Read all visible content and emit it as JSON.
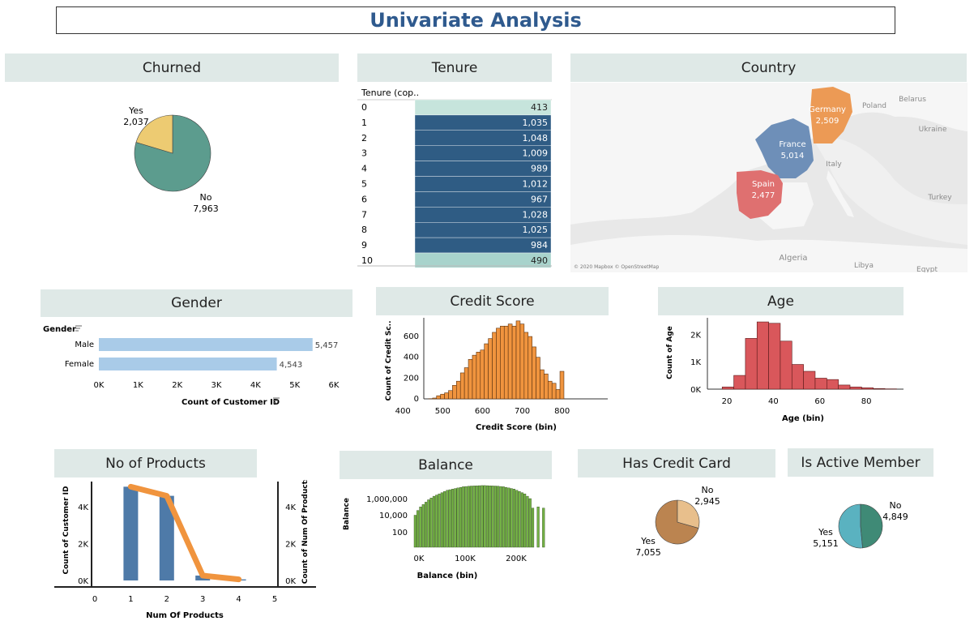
{
  "page": {
    "title": "Univariate Analysis"
  },
  "sections": {
    "churned": "Churned",
    "tenure": "Tenure",
    "country": "Country",
    "gender": "Gender",
    "credit_score": "Credit Score",
    "age": "Age",
    "products": "No of Products",
    "balance": "Balance",
    "credit_card": "Has Credit Card",
    "active_member": "Is Active Member"
  },
  "colors": {
    "churn_no": "#5c9c8e",
    "churn_yes": "#edcb72",
    "tenure_dark": "#2f5c84",
    "tenure_light": "#c6e4dc",
    "germany": "#ec9a55",
    "france": "#6e8fb8",
    "spain": "#df7070",
    "gender_bar": "#a9cbe8",
    "credit_bar": "#f0943e",
    "age_bar": "#d9575b",
    "products_bar": "#4e7aa8",
    "products_line": "#f0943e",
    "balance_bar": "#74b245",
    "cc_yes": "#bb8450",
    "cc_no": "#e8bf8c",
    "active_yes": "#5ab2c0",
    "active_no": "#3f8a76"
  },
  "map": {
    "copyright": "© 2020 Mapbox © OpenStreetMap"
  },
  "chart_data": [
    {
      "id": "churned",
      "type": "pie",
      "slices": [
        {
          "label": "No",
          "value": 7963,
          "value_label": "7,963"
        },
        {
          "label": "Yes",
          "value": 2037,
          "value_label": "2,037"
        }
      ]
    },
    {
      "id": "tenure",
      "type": "table",
      "column_header": "Tenure (cop..",
      "rows": [
        {
          "tenure": "0",
          "count": 413,
          "count_label": "413"
        },
        {
          "tenure": "1",
          "count": 1035,
          "count_label": "1,035"
        },
        {
          "tenure": "2",
          "count": 1048,
          "count_label": "1,048"
        },
        {
          "tenure": "3",
          "count": 1009,
          "count_label": "1,009"
        },
        {
          "tenure": "4",
          "count": 989,
          "count_label": "989"
        },
        {
          "tenure": "5",
          "count": 1012,
          "count_label": "1,012"
        },
        {
          "tenure": "6",
          "count": 967,
          "count_label": "967"
        },
        {
          "tenure": "7",
          "count": 1028,
          "count_label": "1,028"
        },
        {
          "tenure": "8",
          "count": 1025,
          "count_label": "1,025"
        },
        {
          "tenure": "9",
          "count": 984,
          "count_label": "984"
        },
        {
          "tenure": "10",
          "count": 490,
          "count_label": "490"
        }
      ]
    },
    {
      "id": "country",
      "type": "map",
      "regions": [
        {
          "name": "Germany",
          "value": 2509,
          "value_label": "2,509"
        },
        {
          "name": "France",
          "value": 5014,
          "value_label": "5,014"
        },
        {
          "name": "Spain",
          "value": 2477,
          "value_label": "2,477"
        }
      ],
      "place_labels": [
        "Poland",
        "Belarus",
        "Ukraine",
        "Italy",
        "Turkey",
        "Algeria",
        "Libya",
        "Egypt"
      ]
    },
    {
      "id": "gender",
      "type": "bar",
      "orientation": "horizontal",
      "row_header": "Gender",
      "xlabel": "Count of Customer ID",
      "categories": [
        "Male",
        "Female"
      ],
      "values": [
        5457,
        4543
      ],
      "value_labels": [
        "5,457",
        "4,543"
      ],
      "xlim": [
        0,
        6000
      ],
      "xticks": [
        0,
        1000,
        2000,
        3000,
        4000,
        5000,
        6000
      ],
      "xtick_labels": [
        "0K",
        "1K",
        "2K",
        "3K",
        "4K",
        "5K",
        "6K"
      ]
    },
    {
      "id": "credit_score",
      "type": "bar",
      "subtype": "histogram",
      "xlabel": "Credit Score (bin)",
      "ylabel": "Count of Credit Sc..",
      "bin_start": 430,
      "bin_width": 10,
      "values": [
        2,
        8,
        30,
        45,
        58,
        80,
        130,
        170,
        250,
        300,
        380,
        420,
        450,
        470,
        530,
        580,
        640,
        680,
        700,
        700,
        720,
        700,
        750,
        720,
        640,
        600,
        500,
        400,
        280,
        240,
        170,
        150,
        90,
        265
      ],
      "xlim": [
        420,
        880
      ],
      "ylim": [
        0,
        780
      ],
      "xticks": [
        400,
        500,
        600,
        700,
        800
      ],
      "yticks": [
        0,
        200,
        400,
        600
      ]
    },
    {
      "id": "age",
      "type": "bar",
      "subtype": "histogram",
      "xlabel": "Age (bin)",
      "ylabel": "Count of Age",
      "bin_start": 18,
      "bin_width": 5,
      "values": [
        80,
        500,
        1850,
        2450,
        2400,
        1750,
        900,
        650,
        400,
        350,
        150,
        80,
        50,
        20,
        10
      ],
      "xlim": [
        12,
        96
      ],
      "ylim": [
        0,
        2600
      ],
      "xticks": [
        20,
        40,
        60,
        80
      ],
      "yticks": [
        0,
        1000,
        2000
      ],
      "ytick_labels": [
        "0K",
        "1K",
        "2K"
      ]
    },
    {
      "id": "products",
      "type": "bar",
      "combo": "line",
      "xlabel": "Num Of Products",
      "ylabel": "Count of Customer ID",
      "y2label": "Count of Num Of Products",
      "categories": [
        1,
        2,
        3,
        4
      ],
      "values": [
        5084,
        4590,
        266,
        60
      ],
      "line_values": [
        5084,
        4590,
        266,
        60
      ],
      "xlim": [
        0,
        5
      ],
      "ylim": [
        0,
        5100
      ],
      "xticks": [
        0,
        1,
        2,
        3,
        4,
        5
      ],
      "yticks": [
        0,
        2000,
        4000
      ],
      "ytick_labels": [
        "0K",
        "2K",
        "4K"
      ]
    },
    {
      "id": "balance",
      "type": "bar",
      "subtype": "histogram",
      "scale": "log",
      "xlabel": "Balance (bin)",
      "ylabel": "Balance",
      "values_log10": [
        4.2,
        4.6,
        4.9,
        5.1,
        5.3,
        5.5,
        5.65,
        5.8,
        5.9,
        6.0,
        6.1,
        6.2,
        6.3,
        6.35,
        6.4,
        6.45,
        6.5,
        6.55,
        6.6,
        6.62,
        6.64,
        6.66,
        6.67,
        6.68,
        6.69,
        6.7,
        6.7,
        6.69,
        6.68,
        6.67,
        6.66,
        6.65,
        6.62,
        6.6,
        6.55,
        6.5,
        6.45,
        6.4,
        6.3,
        6.2,
        6.1,
        6.0,
        5.8,
        5.6,
        4.8,
        0,
        4.9,
        0,
        4.8
      ],
      "xticks": [
        "0K",
        "100K",
        "200K"
      ],
      "yticks": [
        "1,000,000",
        "10,000",
        "100"
      ]
    },
    {
      "id": "credit_card",
      "type": "pie",
      "slices": [
        {
          "label": "Yes",
          "value": 7055,
          "value_label": "7,055"
        },
        {
          "label": "No",
          "value": 2945,
          "value_label": "2,945"
        }
      ]
    },
    {
      "id": "active_member",
      "type": "pie",
      "slices": [
        {
          "label": "Yes",
          "value": 5151,
          "value_label": "5,151"
        },
        {
          "label": "No",
          "value": 4849,
          "value_label": "4,849"
        }
      ]
    }
  ]
}
